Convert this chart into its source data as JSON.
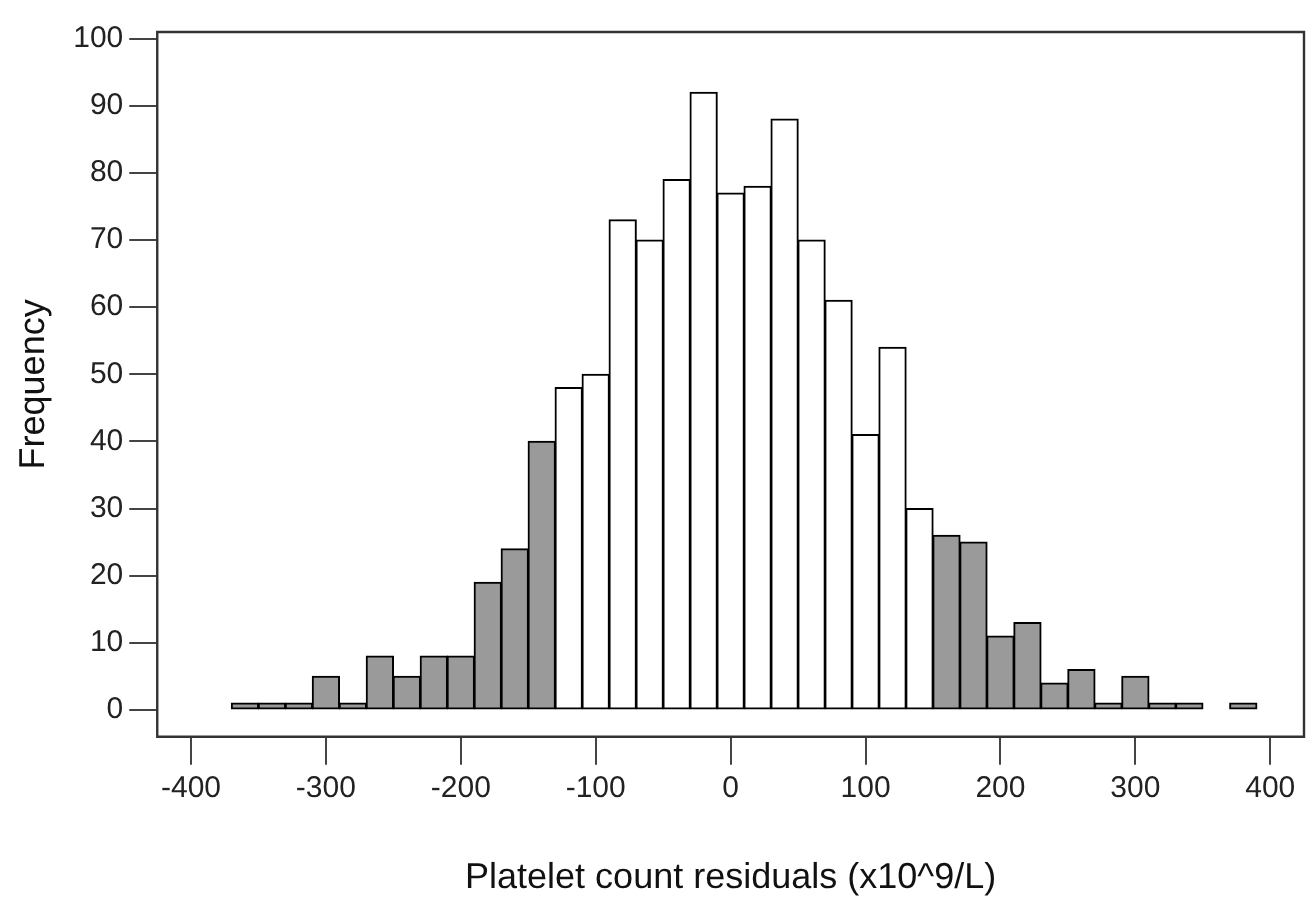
{
  "chart_data": {
    "type": "histogram",
    "xlabel": "Platelet count residuals (x10^9/L)",
    "ylabel": "Frequency",
    "bins": [
      -370,
      -350,
      -330,
      -310,
      -290,
      -270,
      -250,
      -230,
      -210,
      -190,
      -170,
      -150,
      -130,
      -110,
      -90,
      -70,
      -50,
      -30,
      -10,
      10,
      30,
      50,
      70,
      90,
      110,
      130,
      150,
      170,
      190,
      210,
      230,
      250,
      270,
      290,
      310,
      330,
      350,
      370,
      390
    ],
    "values": [
      1,
      1,
      1,
      5,
      1,
      8,
      5,
      8,
      8,
      19,
      24,
      40,
      48,
      50,
      73,
      70,
      79,
      92,
      77,
      78,
      88,
      70,
      61,
      41,
      54,
      30,
      26,
      25,
      11,
      13,
      4,
      6,
      1,
      5,
      1,
      1,
      0,
      1
    ],
    "colors": [
      "#9a9a9a",
      "#9a9a9a",
      "#9a9a9a",
      "#9a9a9a",
      "#9a9a9a",
      "#9a9a9a",
      "#9a9a9a",
      "#9a9a9a",
      "#9a9a9a",
      "#9a9a9a",
      "#9a9a9a",
      "#9a9a9a",
      "#ffffff",
      "#ffffff",
      "#ffffff",
      "#ffffff",
      "#ffffff",
      "#ffffff",
      "#ffffff",
      "#ffffff",
      "#ffffff",
      "#ffffff",
      "#ffffff",
      "#ffffff",
      "#ffffff",
      "#ffffff",
      "#9a9a9a",
      "#9a9a9a",
      "#9a9a9a",
      "#9a9a9a",
      "#9a9a9a",
      "#9a9a9a",
      "#9a9a9a",
      "#9a9a9a",
      "#9a9a9a",
      "#9a9a9a",
      "#9a9a9a",
      "#9a9a9a"
    ],
    "xlim": [
      -425,
      425
    ],
    "xticks": [
      -400,
      -300,
      -200,
      -100,
      0,
      100,
      200,
      300,
      400
    ],
    "ylim": [
      -4,
      101
    ],
    "yticks": [
      0,
      10,
      20,
      30,
      40,
      50,
      60,
      70,
      80,
      90,
      100
    ],
    "grid": false,
    "legend": false
  }
}
